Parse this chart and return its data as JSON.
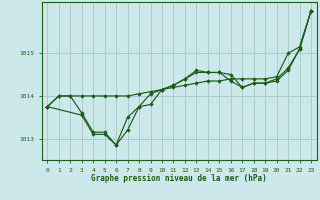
{
  "title": "Graphe pression niveau de la mer (hPa)",
  "bg_color": "#cce8ea",
  "grid_color": "#aacccc",
  "line_color": "#1a5c1a",
  "marker_color": "#1a5c1a",
  "xlim": [
    -0.5,
    23.5
  ],
  "ylim": [
    1012.5,
    1016.2
  ],
  "yticks": [
    1013,
    1014,
    1015
  ],
  "xticks": [
    0,
    1,
    2,
    3,
    4,
    5,
    6,
    7,
    8,
    9,
    10,
    11,
    12,
    13,
    14,
    15,
    16,
    17,
    18,
    19,
    20,
    21,
    22,
    23
  ],
  "series": [
    {
      "x": [
        0,
        1,
        2,
        3,
        4,
        5,
        6,
        7,
        8,
        9,
        10,
        11,
        12,
        13,
        14,
        15,
        16,
        17,
        18,
        19,
        20,
        21,
        22,
        23
      ],
      "y": [
        1013.75,
        1014.0,
        1014.0,
        1014.0,
        1014.0,
        1014.0,
        1014.0,
        1014.0,
        1014.05,
        1014.1,
        1014.15,
        1014.2,
        1014.25,
        1014.3,
        1014.35,
        1014.35,
        1014.4,
        1014.4,
        1014.4,
        1014.4,
        1014.45,
        1015.0,
        1015.15,
        1016.0
      ]
    },
    {
      "x": [
        0,
        1,
        2,
        3,
        4,
        5,
        6,
        7,
        8,
        9,
        10,
        11,
        12,
        13,
        14,
        15,
        16,
        17,
        18,
        19,
        20,
        21,
        22,
        23
      ],
      "y": [
        1013.75,
        1014.0,
        1014.0,
        1013.6,
        1013.15,
        1013.15,
        1012.85,
        1013.2,
        1013.75,
        1014.05,
        1014.15,
        1014.25,
        1014.4,
        1014.55,
        1014.55,
        1014.55,
        1014.35,
        1014.2,
        1014.3,
        1014.3,
        1014.4,
        1014.65,
        1015.1,
        1016.0
      ]
    },
    {
      "x": [
        0,
        3,
        4,
        5,
        6,
        7,
        8,
        9,
        10,
        11,
        12,
        13,
        14,
        15,
        16,
        17,
        18,
        19,
        20,
        21,
        22,
        23
      ],
      "y": [
        1013.75,
        1013.55,
        1013.1,
        1013.1,
        1012.85,
        1013.5,
        1013.75,
        1013.8,
        1014.15,
        1014.25,
        1014.4,
        1014.6,
        1014.55,
        1014.55,
        1014.5,
        1014.2,
        1014.3,
        1014.3,
        1014.35,
        1014.6,
        1015.1,
        1016.0
      ]
    }
  ]
}
